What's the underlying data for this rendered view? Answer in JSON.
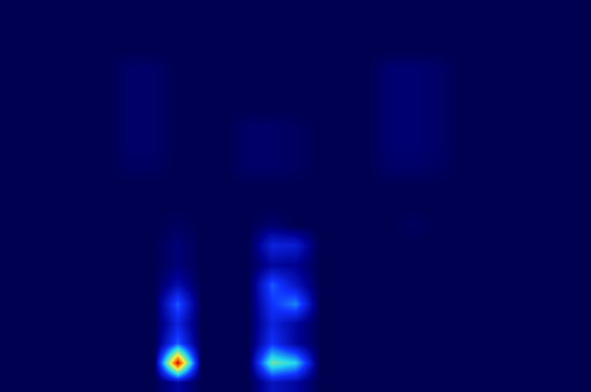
{
  "chart_data": {
    "type": "heatmap",
    "tick_labels": false,
    "cells": [
      [
        0,
        0,
        0,
        0,
        0,
        0,
        0,
        0,
        0,
        0,
        0,
        0,
        0,
        0,
        0,
        0,
        0,
        0,
        0,
        0,
        0,
        0,
        0,
        0,
        0
      ],
      [
        0,
        0,
        0,
        0,
        0,
        0,
        0,
        0,
        0,
        0,
        0,
        0,
        0,
        0,
        0,
        0,
        0,
        0,
        0,
        0,
        0,
        0,
        0,
        0,
        0
      ],
      [
        0,
        0,
        0,
        0,
        0,
        0,
        0,
        0,
        0,
        0,
        0,
        0,
        0,
        0,
        0,
        0,
        0,
        0,
        0,
        0,
        0,
        0,
        0,
        0,
        0
      ],
      [
        0,
        0,
        0,
        0,
        0,
        0.03,
        0.03,
        0,
        0,
        0,
        0,
        0,
        0,
        0,
        0,
        0,
        0.04,
        0.04,
        0.03,
        0,
        0,
        0,
        0,
        0,
        0
      ],
      [
        0,
        0,
        0,
        0,
        0,
        0.03,
        0.03,
        0,
        0,
        0,
        0,
        0,
        0,
        0,
        0,
        0,
        0.04,
        0.04,
        0.03,
        0,
        0,
        0,
        0,
        0,
        0
      ],
      [
        0,
        0,
        0,
        0,
        0,
        0.03,
        0.03,
        0,
        0,
        0,
        0,
        0,
        0,
        0,
        0,
        0,
        0.04,
        0.04,
        0.03,
        0,
        0,
        0,
        0,
        0,
        0
      ],
      [
        0,
        0,
        0,
        0,
        0,
        0.03,
        0.03,
        0,
        0,
        0,
        0.03,
        0.03,
        0.02,
        0,
        0,
        0,
        0.04,
        0.04,
        0.03,
        0,
        0,
        0,
        0,
        0,
        0
      ],
      [
        0,
        0,
        0,
        0,
        0,
        0.03,
        0.03,
        0,
        0,
        0,
        0.03,
        0.03,
        0.02,
        0,
        0,
        0,
        0.04,
        0.04,
        0.03,
        0,
        0,
        0,
        0,
        0,
        0
      ],
      [
        0,
        0,
        0,
        0,
        0,
        0.02,
        0.02,
        0,
        0,
        0,
        0.03,
        0.03,
        0.02,
        0,
        0,
        0,
        0.03,
        0.03,
        0.02,
        0,
        0,
        0,
        0,
        0,
        0
      ],
      [
        0,
        0,
        0,
        0,
        0,
        0,
        0,
        0,
        0,
        0,
        0,
        0,
        0,
        0,
        0,
        0,
        0,
        0,
        0,
        0,
        0,
        0,
        0,
        0,
        0
      ],
      [
        0,
        0,
        0,
        0,
        0,
        0,
        0,
        0,
        0,
        0,
        0,
        0,
        0,
        0,
        0,
        0,
        0,
        0,
        0,
        0,
        0,
        0,
        0,
        0,
        0
      ],
      [
        0,
        0,
        0,
        0,
        0,
        0,
        0,
        0.02,
        0,
        0,
        0,
        0.04,
        0,
        0,
        0,
        0,
        0,
        0.02,
        0,
        0,
        0,
        0,
        0,
        0,
        0
      ],
      [
        0,
        0,
        0,
        0,
        0,
        0,
        0,
        0.05,
        0,
        0,
        0,
        0.2,
        0.18,
        0,
        0,
        0,
        0,
        0,
        0,
        0,
        0,
        0,
        0,
        0,
        0
      ],
      [
        0,
        0,
        0,
        0,
        0,
        0,
        0,
        0.05,
        0,
        0,
        0,
        0.1,
        0.08,
        0,
        0,
        0,
        0,
        0,
        0,
        0,
        0,
        0,
        0,
        0,
        0
      ],
      [
        0,
        0,
        0,
        0,
        0,
        0,
        0,
        0.12,
        0,
        0,
        0,
        0.3,
        0.15,
        0,
        0,
        0,
        0,
        0,
        0,
        0,
        0,
        0,
        0,
        0,
        0
      ],
      [
        0,
        0,
        0,
        0,
        0,
        0,
        0,
        0.3,
        0,
        0,
        0,
        0.25,
        0.35,
        0,
        0,
        0,
        0,
        0,
        0,
        0,
        0,
        0,
        0,
        0,
        0
      ],
      [
        0,
        0,
        0,
        0,
        0,
        0,
        0,
        0.2,
        0,
        0,
        0,
        0.2,
        0.1,
        0,
        0,
        0,
        0,
        0,
        0,
        0,
        0,
        0,
        0,
        0,
        0
      ],
      [
        0,
        0,
        0,
        0,
        0,
        0,
        0,
        0.3,
        0,
        0,
        0,
        0.25,
        0.1,
        0,
        0,
        0,
        0,
        0,
        0,
        0,
        0,
        0,
        0,
        0,
        0
      ],
      [
        0,
        0,
        0,
        0,
        0,
        0,
        0,
        1,
        0,
        0,
        0,
        0.55,
        0.45,
        0,
        0,
        0,
        0,
        0,
        0,
        0,
        0,
        0,
        0,
        0,
        0
      ],
      [
        0,
        0,
        0,
        0,
        0,
        0,
        0,
        0.1,
        0,
        0,
        0,
        0.15,
        0.1,
        0,
        0,
        0,
        0,
        0,
        0,
        0,
        0,
        0,
        0,
        0,
        0
      ]
    ]
  }
}
